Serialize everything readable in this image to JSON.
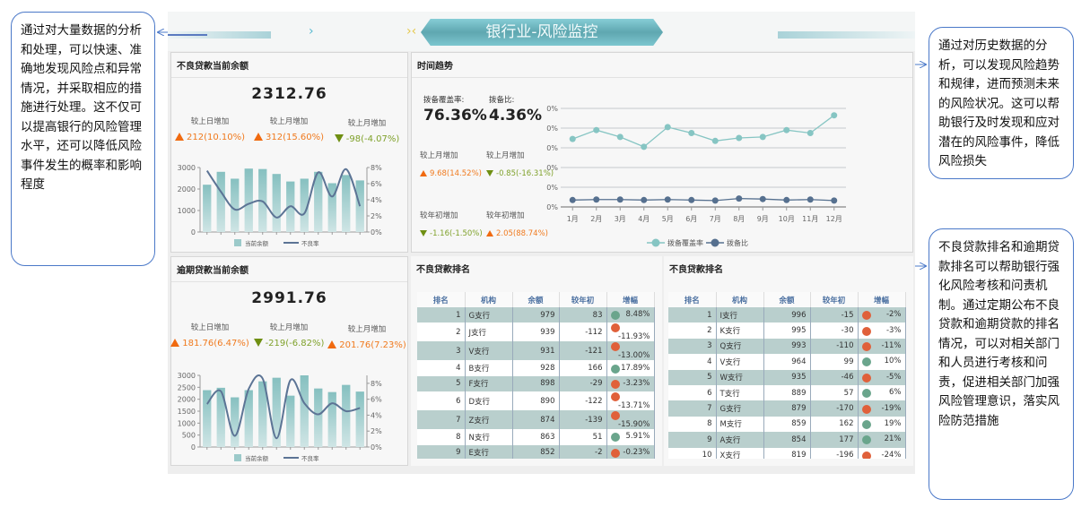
{
  "header": {
    "title": "银行业-风险监控"
  },
  "notes": {
    "left": "通过对大量数据的分析和处理，可以快速、准确地发现风险点和异常情况，并采取相应的措施进行处理。这不仅可以提高银行的风险管理水平，还可以降低风险事件发生的概率和影响程度",
    "right_top": "通过对历史数据的分析，可以发现风险趋势和规律，进而预测未来的风险状况。这可以帮助银行及时发现和应对潜在的风险事件，降低风险损失",
    "right_bottom": "不良贷款排名和逾期贷款排名可以帮助银行强化风险考核和问责机制。通过定期公布不良贷款和逾期贷款的排名情况，可以对相关部门和人员进行考核和问责，促进相关部门加强风险管理意识，落实风险防范措施"
  },
  "npl": {
    "title": "不良贷款当前余额",
    "value": "2312.76",
    "stats": [
      {
        "label": "较上日增加",
        "value": "212(10.10%)",
        "dir": "up"
      },
      {
        "label": "较上月增加",
        "value": "312(15.60%)",
        "dir": "up"
      },
      {
        "label": "较上月增加",
        "value": "-98(-4.07%)",
        "dir": "down"
      }
    ]
  },
  "overdue": {
    "title": "逾期贷款当前余额",
    "value": "2991.76",
    "stats": [
      {
        "label": "较上日增加",
        "value": "181.76(6.47%)",
        "dir": "up"
      },
      {
        "label": "较上月增加",
        "value": "-219(-6.82%)",
        "dir": "down"
      },
      {
        "label": "较上月增加",
        "value": "201.76(7.23%)",
        "dir": "up"
      }
    ]
  },
  "trend": {
    "title": "时间趋势",
    "kpis": [
      {
        "label": "拨备覆盖率:",
        "value": "76.36%"
      },
      {
        "label": "拨备比:",
        "value": "4.36%"
      }
    ],
    "stats": [
      {
        "label": "较上月增加",
        "value": "9.68(14.52%)",
        "dir": "up"
      },
      {
        "label": "较上月增加",
        "value": "-0.85(-16.31%)",
        "dir": "down"
      },
      {
        "label": "较年初增加",
        "value": "-1.16(-1.50%)",
        "dir": "down"
      },
      {
        "label": "较年初增加",
        "value": "2.05(88.74%)",
        "dir": "up"
      }
    ]
  },
  "chart_data": [
    {
      "type": "bar+line",
      "title": "不良贷款当前余额",
      "categories": [
        "1",
        "2",
        "3",
        "4",
        "5",
        "6",
        "7",
        "8",
        "9",
        "10",
        "11",
        "12"
      ],
      "series": [
        {
          "name": "当前余额",
          "type": "bar",
          "axis": "left",
          "values": [
            2200,
            2800,
            2480,
            2950,
            2930,
            2700,
            2350,
            2480,
            2800,
            2270,
            2650,
            2400
          ]
        },
        {
          "name": "不良率",
          "type": "line",
          "axis": "right",
          "values": [
            7.6,
            5.0,
            2.8,
            3.5,
            3.8,
            1.8,
            3.2,
            2.3,
            7.4,
            4.4,
            7.8,
            3.2
          ]
        }
      ],
      "yleft": {
        "ticks": [
          "0",
          "1000",
          "2000",
          "3000"
        ],
        "range": [
          0,
          3000
        ]
      },
      "yright": {
        "ticks": [
          "0%",
          "2%",
          "4%",
          "6%",
          "8%"
        ],
        "range": [
          0,
          8
        ]
      },
      "legend": "bottom"
    },
    {
      "type": "bar+line",
      "title": "逾期贷款当前余额",
      "categories": [
        "1",
        "2",
        "3",
        "4",
        "5",
        "6",
        "7",
        "8",
        "9",
        "10",
        "11",
        "12"
      ],
      "series": [
        {
          "name": "当前余额",
          "type": "bar",
          "axis": "left",
          "values": [
            2380,
            2480,
            2080,
            2380,
            2750,
            2900,
            2150,
            3000,
            2450,
            2300,
            2600,
            2320
          ]
        },
        {
          "name": "不良率",
          "type": "line",
          "axis": "right",
          "values": [
            5.4,
            7.0,
            1.4,
            7.3,
            8.6,
            1.1,
            8.4,
            5.5,
            4.1,
            5.5,
            4.5,
            4.9
          ]
        }
      ],
      "yleft": {
        "ticks": [
          "0",
          "500",
          "1000",
          "1500",
          "2000",
          "2500",
          "3000"
        ],
        "range": [
          0,
          3000
        ]
      },
      "yright": {
        "ticks": [
          "0%",
          "2%",
          "4%",
          "6%",
          "8%"
        ],
        "range": [
          0,
          9
        ]
      },
      "legend": "bottom"
    },
    {
      "type": "line",
      "title": "时间趋势",
      "categories": [
        "1月",
        "2月",
        "3月",
        "4月",
        "5月",
        "6月",
        "7月",
        "8月",
        "9月",
        "10月",
        "11月",
        "12月"
      ],
      "series": [
        {
          "name": "拨备覆盖率",
          "values": [
            69,
            78,
            71,
            61,
            81,
            75,
            67,
            70,
            71,
            78,
            75,
            93
          ],
          "color": "#86c5c3"
        },
        {
          "name": "拨备比",
          "values": [
            7,
            7.5,
            7.5,
            7,
            7.5,
            7,
            6.5,
            8.5,
            8,
            7,
            7.5,
            6.5
          ],
          "color": "#56708f"
        }
      ],
      "yticks": [
        "0%",
        "20%",
        "40%",
        "60%",
        "80%",
        "100%"
      ],
      "ylim": [
        0,
        100
      ],
      "grid": true,
      "legend": "bottom"
    }
  ],
  "rank_npl": {
    "title": "不良贷款排名",
    "columns": [
      "排名",
      "机构",
      "余额",
      "较年初",
      "增幅"
    ],
    "rows": [
      [
        "1",
        "G支行",
        "979",
        "83",
        "8.48%",
        "up"
      ],
      [
        "2",
        "J支行",
        "939",
        "-112",
        "-11.93%",
        "down"
      ],
      [
        "3",
        "V支行",
        "931",
        "-121",
        "-13.00%",
        "down"
      ],
      [
        "4",
        "B支行",
        "928",
        "166",
        "17.89%",
        "up"
      ],
      [
        "5",
        "F支行",
        "898",
        "-29",
        "-3.23%",
        "down"
      ],
      [
        "6",
        "D支行",
        "890",
        "-122",
        "-13.71%",
        "down"
      ],
      [
        "7",
        "Z支行",
        "874",
        "-139",
        "-15.90%",
        "down"
      ],
      [
        "8",
        "N支行",
        "863",
        "51",
        "5.91%",
        "up"
      ],
      [
        "9",
        "E支行",
        "852",
        "-2",
        "-0.23%",
        "down"
      ],
      [
        "10",
        "X支行",
        "851",
        "96",
        "11.28%",
        "up"
      ]
    ]
  },
  "rank_overdue": {
    "title": "不良贷款排名",
    "columns": [
      "排名",
      "机构",
      "余额",
      "较年初",
      "增幅"
    ],
    "rows": [
      [
        "1",
        "I支行",
        "996",
        "-15",
        "-2%",
        "down"
      ],
      [
        "2",
        "K支行",
        "995",
        "-30",
        "-3%",
        "down"
      ],
      [
        "3",
        "Q支行",
        "993",
        "-110",
        "-11%",
        "down"
      ],
      [
        "4",
        "V支行",
        "964",
        "99",
        "10%",
        "up"
      ],
      [
        "5",
        "W支行",
        "935",
        "-46",
        "-5%",
        "down"
      ],
      [
        "6",
        "T支行",
        "889",
        "57",
        "6%",
        "up"
      ],
      [
        "7",
        "G支行",
        "879",
        "-170",
        "-19%",
        "down"
      ],
      [
        "8",
        "M支行",
        "859",
        "162",
        "19%",
        "up"
      ],
      [
        "9",
        "A支行",
        "854",
        "177",
        "21%",
        "up"
      ],
      [
        "10",
        "X支行",
        "819",
        "-196",
        "-24%",
        "down"
      ]
    ]
  },
  "colors": {
    "up": "#f07a1e",
    "down": "#7fa12a",
    "dot_up": "#6aa58c",
    "dot_down": "#e0603a",
    "bar": "#8ec4c4",
    "line": "#5c7495"
  }
}
